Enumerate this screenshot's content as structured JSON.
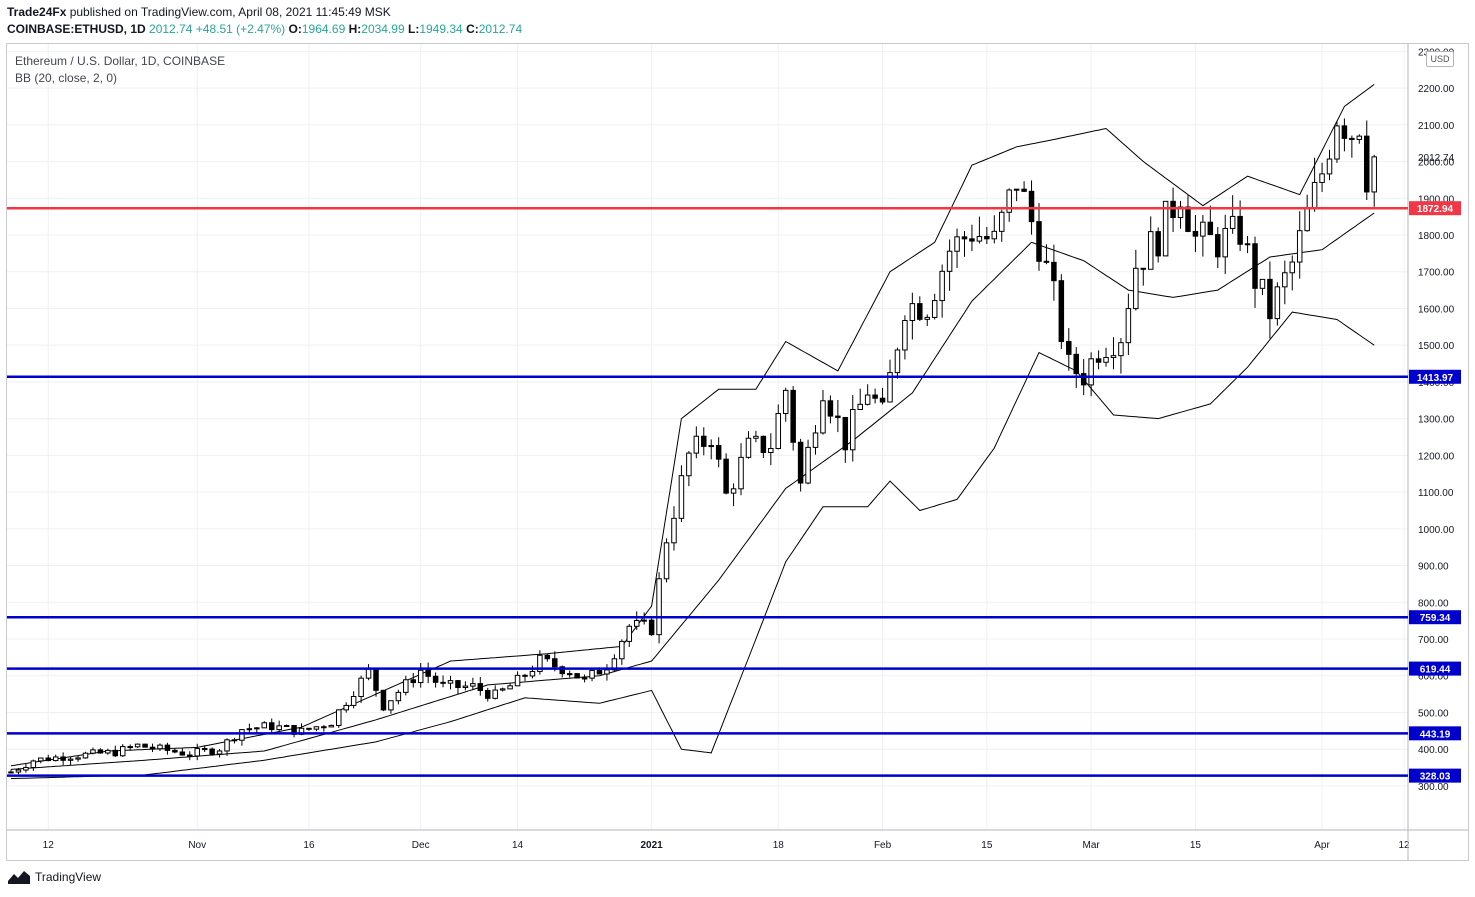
{
  "header": {
    "publisher": "Trade24Fx",
    "published_text": " published on TradingView.com, April 08, 2021 11:45:49 MSK",
    "symbol": "COINBASE:ETHUSD, 1D",
    "price": "2012.74",
    "change": "+48.51 (+2.47%)",
    "o_label": "O:",
    "o_value": "1964.69",
    "h_label": "H:",
    "h_value": "2034.99",
    "l_label": "L:",
    "l_value": "1949.34",
    "c_label": "C:",
    "c_value": "2012.74"
  },
  "legend": {
    "title": "Ethereum / U.S. Dollar, 1D, COINBASE",
    "indicator": "BB (20, close, 2, 0)"
  },
  "currency_label": "USD",
  "footer": {
    "brand": "TradingView"
  },
  "colors": {
    "up_candle": "#ffffff",
    "down_candle": "#000000",
    "wick": "#000000",
    "red_line": "#f23645",
    "blue_line": "#0000cc",
    "grid": "#eef0f3",
    "text_up": "#26a69a"
  },
  "chart_data": {
    "type": "candlestick",
    "title": "Ethereum / U.S. Dollar, 1D, COINBASE",
    "y_axis": {
      "ticks": [
        300,
        400,
        500,
        600,
        700,
        800,
        900,
        1000,
        1100,
        1200,
        1300,
        1400,
        1500,
        1600,
        1700,
        1800,
        1900,
        2000,
        2100,
        2200,
        2300
      ],
      "tick_labels": [
        "300.00",
        "400.00",
        "500.00",
        "600.00",
        "700.00",
        "800.00",
        "900.00",
        "1000.00",
        "1100.00",
        "1200.00",
        "1300.00",
        "1400.00",
        "1500.00",
        "1600.00",
        "1700.00",
        "1800.00",
        "1900.00",
        "2000.00",
        "2100.00",
        "2200.00",
        "2300.00"
      ],
      "range": [
        180,
        2320
      ]
    },
    "x_axis": {
      "date_start": "2020-10-07",
      "date_end": "2021-04-12",
      "ticks": [
        {
          "label": "12",
          "date": "2020-10-12"
        },
        {
          "label": "Nov",
          "date": "2020-11-01"
        },
        {
          "label": "16",
          "date": "2020-11-16"
        },
        {
          "label": "Dec",
          "date": "2020-12-01"
        },
        {
          "label": "14",
          "date": "2020-12-14"
        },
        {
          "label": "2021",
          "date": "2021-01-01"
        },
        {
          "label": "18",
          "date": "2021-01-18"
        },
        {
          "label": "Feb",
          "date": "2021-02-01"
        },
        {
          "label": "15",
          "date": "2021-02-15"
        },
        {
          "label": "Mar",
          "date": "2021-03-01"
        },
        {
          "label": "15",
          "date": "2021-03-15"
        },
        {
          "label": "Apr",
          "date": "2021-04-01"
        },
        {
          "label": "12",
          "date": "2021-04-12"
        }
      ]
    },
    "current_price": {
      "value": 2012.74,
      "label": "2012.74"
    },
    "horizontal_levels": [
      {
        "value": 1872.94,
        "label": "1872.94",
        "color": "#f23645"
      },
      {
        "value": 1413.97,
        "label": "1413.97",
        "color": "#0000cc"
      },
      {
        "value": 759.34,
        "label": "759.34",
        "color": "#0000cc"
      },
      {
        "value": 619.44,
        "label": "619.44",
        "color": "#0000cc"
      },
      {
        "value": 443.19,
        "label": "443.19",
        "color": "#0000cc"
      },
      {
        "value": 328.03,
        "label": "328.03",
        "color": "#0000cc"
      }
    ],
    "closes_anchor": [
      [
        "2020-10-07",
        338
      ],
      [
        "2020-10-10",
        370
      ],
      [
        "2020-10-14",
        380
      ],
      [
        "2020-10-21",
        392
      ],
      [
        "2020-10-24",
        410
      ],
      [
        "2020-10-31",
        387
      ],
      [
        "2020-11-04",
        402
      ],
      [
        "2020-11-07",
        455
      ],
      [
        "2020-11-11",
        463
      ],
      [
        "2020-11-15",
        448
      ],
      [
        "2020-11-19",
        475
      ],
      [
        "2020-11-22",
        560
      ],
      [
        "2020-11-24",
        610
      ],
      [
        "2020-11-26",
        520
      ],
      [
        "2020-11-29",
        575
      ],
      [
        "2020-12-01",
        615
      ],
      [
        "2020-12-04",
        570
      ],
      [
        "2020-12-08",
        570
      ],
      [
        "2020-12-11",
        545
      ],
      [
        "2020-12-14",
        585
      ],
      [
        "2020-12-17",
        640
      ],
      [
        "2020-12-21",
        615
      ],
      [
        "2020-12-23",
        585
      ],
      [
        "2020-12-26",
        630
      ],
      [
        "2020-12-29",
        735
      ],
      [
        "2021-01-01",
        730
      ],
      [
        "2021-01-03",
        975
      ],
      [
        "2021-01-06",
        1200
      ],
      [
        "2021-01-09",
        1255
      ],
      [
        "2021-01-11",
        1090
      ],
      [
        "2021-01-14",
        1220
      ],
      [
        "2021-01-17",
        1230
      ],
      [
        "2021-01-19",
        1380
      ],
      [
        "2021-01-21",
        1120
      ],
      [
        "2021-01-24",
        1390
      ],
      [
        "2021-01-27",
        1240
      ],
      [
        "2021-01-30",
        1380
      ],
      [
        "2021-02-01",
        1310
      ],
      [
        "2021-02-04",
        1610
      ],
      [
        "2021-02-07",
        1610
      ],
      [
        "2021-02-10",
        1760
      ],
      [
        "2021-02-13",
        1810
      ],
      [
        "2021-02-16",
        1780
      ],
      [
        "2021-02-19",
        1950
      ],
      [
        "2021-02-22",
        1780
      ],
      [
        "2021-02-24",
        1630
      ],
      [
        "2021-02-26",
        1440
      ],
      [
        "2021-02-28",
        1420
      ],
      [
        "2021-03-02",
        1490
      ],
      [
        "2021-03-05",
        1530
      ],
      [
        "2021-03-07",
        1720
      ],
      [
        "2021-03-10",
        1795
      ],
      [
        "2021-03-13",
        1920
      ],
      [
        "2021-03-15",
        1790
      ],
      [
        "2021-03-18",
        1780
      ],
      [
        "2021-03-21",
        1810
      ],
      [
        "2021-03-23",
        1680
      ],
      [
        "2021-03-25",
        1590
      ],
      [
        "2021-03-28",
        1720
      ],
      [
        "2021-03-30",
        1850
      ],
      [
        "2021-04-01",
        1970
      ],
      [
        "2021-04-03",
        2130
      ],
      [
        "2021-04-05",
        2080
      ],
      [
        "2021-04-06",
        2110
      ],
      [
        "2021-04-07",
        1965
      ],
      [
        "2021-04-08",
        2012.74
      ]
    ],
    "bb_upper": [
      [
        "2020-10-07",
        355
      ],
      [
        "2020-10-20",
        395
      ],
      [
        "2020-11-01",
        405
      ],
      [
        "2020-11-15",
        460
      ],
      [
        "2020-11-25",
        550
      ],
      [
        "2020-12-05",
        640
      ],
      [
        "2020-12-18",
        660
      ],
      [
        "2020-12-28",
        680
      ],
      [
        "2021-01-01",
        790
      ],
      [
        "2021-01-05",
        1300
      ],
      [
        "2021-01-10",
        1380
      ],
      [
        "2021-01-15",
        1380
      ],
      [
        "2021-01-19",
        1510
      ],
      [
        "2021-01-26",
        1430
      ],
      [
        "2021-02-02",
        1700
      ],
      [
        "2021-02-08",
        1780
      ],
      [
        "2021-02-13",
        1990
      ],
      [
        "2021-02-19",
        2040
      ],
      [
        "2021-02-24",
        2060
      ],
      [
        "2021-03-03",
        2090
      ],
      [
        "2021-03-08",
        2000
      ],
      [
        "2021-03-16",
        1880
      ],
      [
        "2021-03-22",
        1960
      ],
      [
        "2021-03-29",
        1910
      ],
      [
        "2021-04-04",
        2150
      ],
      [
        "2021-04-08",
        2210
      ]
    ],
    "bb_middle": [
      [
        "2020-10-07",
        345
      ],
      [
        "2020-10-25",
        370
      ],
      [
        "2020-11-10",
        395
      ],
      [
        "2020-11-25",
        480
      ],
      [
        "2020-12-10",
        575
      ],
      [
        "2020-12-25",
        600
      ],
      [
        "2021-01-01",
        640
      ],
      [
        "2021-01-10",
        860
      ],
      [
        "2021-01-19",
        1110
      ],
      [
        "2021-01-28",
        1240
      ],
      [
        "2021-02-05",
        1370
      ],
      [
        "2021-02-13",
        1620
      ],
      [
        "2021-02-21",
        1780
      ],
      [
        "2021-02-28",
        1730
      ],
      [
        "2021-03-06",
        1650
      ],
      [
        "2021-03-12",
        1630
      ],
      [
        "2021-03-18",
        1650
      ],
      [
        "2021-03-25",
        1740
      ],
      [
        "2021-04-01",
        1760
      ],
      [
        "2021-04-08",
        1860
      ]
    ],
    "bb_lower": [
      [
        "2020-10-07",
        320
      ],
      [
        "2020-10-25",
        330
      ],
      [
        "2020-11-10",
        370
      ],
      [
        "2020-11-25",
        420
      ],
      [
        "2020-12-05",
        475
      ],
      [
        "2020-12-15",
        540
      ],
      [
        "2020-12-25",
        525
      ],
      [
        "2021-01-01",
        560
      ],
      [
        "2021-01-05",
        400
      ],
      [
        "2021-01-09",
        390
      ],
      [
        "2021-01-15",
        700
      ],
      [
        "2021-01-19",
        910
      ],
      [
        "2021-01-24",
        1060
      ],
      [
        "2021-01-30",
        1060
      ],
      [
        "2021-02-02",
        1130
      ],
      [
        "2021-02-06",
        1050
      ],
      [
        "2021-02-11",
        1080
      ],
      [
        "2021-02-16",
        1220
      ],
      [
        "2021-02-22",
        1480
      ],
      [
        "2021-02-27",
        1430
      ],
      [
        "2021-03-04",
        1310
      ],
      [
        "2021-03-10",
        1300
      ],
      [
        "2021-03-17",
        1340
      ],
      [
        "2021-03-22",
        1440
      ],
      [
        "2021-03-28",
        1590
      ],
      [
        "2021-04-03",
        1570
      ],
      [
        "2021-04-08",
        1500
      ]
    ]
  }
}
